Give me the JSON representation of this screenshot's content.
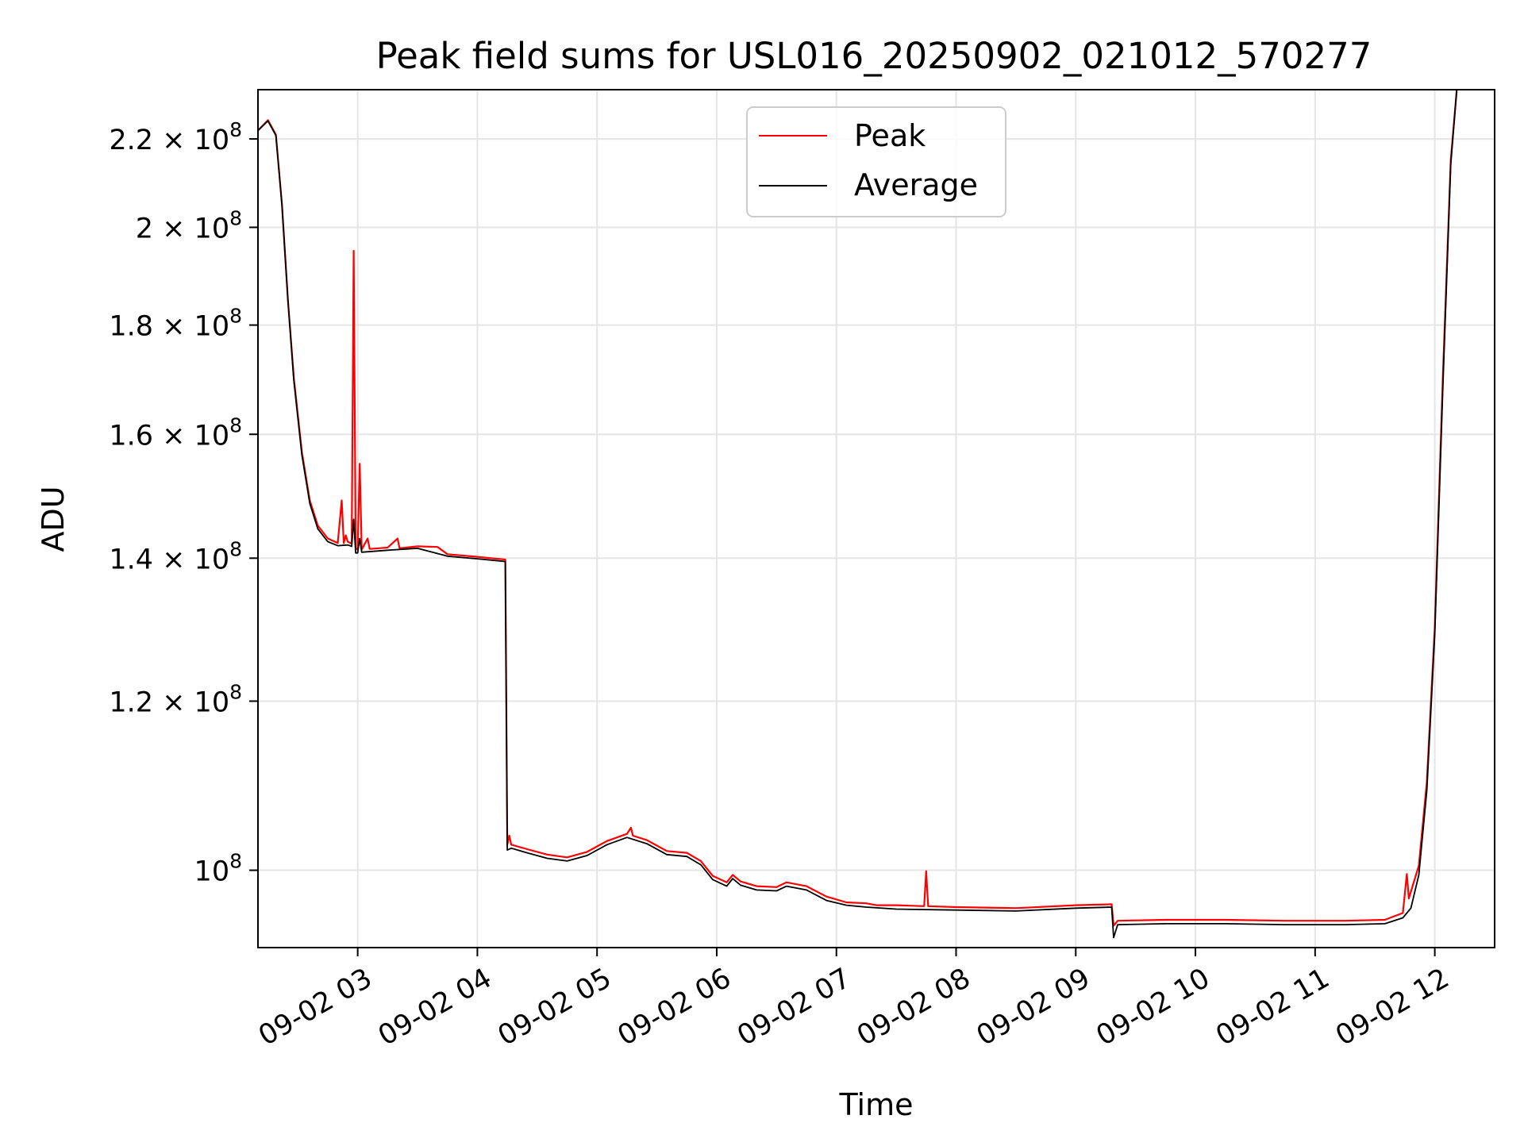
{
  "chart_data": {
    "type": "line",
    "title": "Peak field sums for USL016_20250902_021012_570277",
    "xlabel": "Time",
    "ylabel": "ADU",
    "yscale": "log",
    "grid": true,
    "legend_position": "top-center",
    "xlim": [
      "2025-09-02T02:10",
      "2025-09-02T12:30"
    ],
    "ylim": [
      92000000,
      232000000
    ],
    "x_ticks": [
      {
        "t": "2025-09-02T03:00",
        "label": "09-02 03"
      },
      {
        "t": "2025-09-02T04:00",
        "label": "09-02 04"
      },
      {
        "t": "2025-09-02T05:00",
        "label": "09-02 05"
      },
      {
        "t": "2025-09-02T06:00",
        "label": "09-02 06"
      },
      {
        "t": "2025-09-02T07:00",
        "label": "09-02 07"
      },
      {
        "t": "2025-09-02T08:00",
        "label": "09-02 08"
      },
      {
        "t": "2025-09-02T09:00",
        "label": "09-02 09"
      },
      {
        "t": "2025-09-02T10:00",
        "label": "09-02 10"
      },
      {
        "t": "2025-09-02T11:00",
        "label": "09-02 11"
      },
      {
        "t": "2025-09-02T12:00",
        "label": "09-02 12"
      }
    ],
    "y_ticks": [
      {
        "value": 100000000,
        "mant": "10",
        "exp": "8"
      },
      {
        "value": 120000000,
        "mant": "1.2 × 10",
        "exp": "8"
      },
      {
        "value": 140000000,
        "mant": "1.4 × 10",
        "exp": "8"
      },
      {
        "value": 160000000,
        "mant": "1.6 × 10",
        "exp": "8"
      },
      {
        "value": 180000000,
        "mant": "1.8 × 10",
        "exp": "8"
      },
      {
        "value": 200000000,
        "mant": "2 × 10",
        "exp": "8"
      },
      {
        "value": 220000000,
        "mant": "2.2 × 10",
        "exp": "8"
      }
    ],
    "series": [
      {
        "name": "Peak",
        "color": "#ff0000",
        "points": [
          [
            "2025-09-02T02:10",
            222000000
          ],
          [
            "2025-09-02T02:15",
            224500000
          ],
          [
            "2025-09-02T02:19",
            221000000
          ],
          [
            "2025-09-02T02:22",
            205000000
          ],
          [
            "2025-09-02T02:25",
            185000000
          ],
          [
            "2025-09-02T02:28",
            170000000
          ],
          [
            "2025-09-02T02:32",
            157000000
          ],
          [
            "2025-09-02T02:36",
            149000000
          ],
          [
            "2025-09-02T02:40",
            145000000
          ],
          [
            "2025-09-02T02:45",
            143000000
          ],
          [
            "2025-09-02T02:50",
            142300000
          ],
          [
            "2025-09-02T02:52",
            149000000
          ],
          [
            "2025-09-02T02:53",
            142300000
          ],
          [
            "2025-09-02T02:54",
            143500000
          ],
          [
            "2025-09-02T02:55",
            142500000
          ],
          [
            "2025-09-02T02:57",
            142200000
          ],
          [
            "2025-09-02T02:58",
            195000000
          ],
          [
            "2025-09-02T02:59",
            141500000
          ],
          [
            "2025-09-02T03:00",
            141300000
          ],
          [
            "2025-09-02T03:01",
            155000000
          ],
          [
            "2025-09-02T03:02",
            141300000
          ],
          [
            "2025-09-02T03:05",
            143000000
          ],
          [
            "2025-09-02T03:06",
            141400000
          ],
          [
            "2025-09-02T03:15",
            141600000
          ],
          [
            "2025-09-02T03:20",
            143000000
          ],
          [
            "2025-09-02T03:21",
            141500000
          ],
          [
            "2025-09-02T03:30",
            141800000
          ],
          [
            "2025-09-02T03:40",
            141700000
          ],
          [
            "2025-09-02T03:45",
            140600000
          ],
          [
            "2025-09-02T04:00",
            140200000
          ],
          [
            "2025-09-02T04:10",
            139900000
          ],
          [
            "2025-09-02T04:14",
            139800000
          ],
          [
            "2025-09-02T04:15",
            102800000
          ],
          [
            "2025-09-02T04:16",
            103800000
          ],
          [
            "2025-09-02T04:17",
            102800000
          ],
          [
            "2025-09-02T04:25",
            102300000
          ],
          [
            "2025-09-02T04:35",
            101700000
          ],
          [
            "2025-09-02T04:45",
            101400000
          ],
          [
            "2025-09-02T04:55",
            102000000
          ],
          [
            "2025-09-02T05:05",
            103200000
          ],
          [
            "2025-09-02T05:15",
            104000000
          ],
          [
            "2025-09-02T05:17",
            104700000
          ],
          [
            "2025-09-02T05:18",
            103800000
          ],
          [
            "2025-09-02T05:25",
            103300000
          ],
          [
            "2025-09-02T05:35",
            102100000
          ],
          [
            "2025-09-02T05:45",
            101900000
          ],
          [
            "2025-09-02T05:52",
            101000000
          ],
          [
            "2025-09-02T05:58",
            99400000
          ],
          [
            "2025-09-02T06:05",
            98700000
          ],
          [
            "2025-09-02T06:08",
            99500000
          ],
          [
            "2025-09-02T06:12",
            98800000
          ],
          [
            "2025-09-02T06:20",
            98300000
          ],
          [
            "2025-09-02T06:30",
            98200000
          ],
          [
            "2025-09-02T06:35",
            98700000
          ],
          [
            "2025-09-02T06:45",
            98300000
          ],
          [
            "2025-09-02T06:55",
            97200000
          ],
          [
            "2025-09-02T07:05",
            96600000
          ],
          [
            "2025-09-02T07:15",
            96500000
          ],
          [
            "2025-09-02T07:20",
            96300000
          ],
          [
            "2025-09-02T07:30",
            96300000
          ],
          [
            "2025-09-02T07:44",
            96200000
          ],
          [
            "2025-09-02T07:45",
            99900000
          ],
          [
            "2025-09-02T07:46",
            96200000
          ],
          [
            "2025-09-02T08:00",
            96100000
          ],
          [
            "2025-09-02T08:30",
            96000000
          ],
          [
            "2025-09-02T09:00",
            96300000
          ],
          [
            "2025-09-02T09:18",
            96400000
          ],
          [
            "2025-09-02T09:19",
            94200000
          ],
          [
            "2025-09-02T09:21",
            94700000
          ],
          [
            "2025-09-02T09:45",
            94800000
          ],
          [
            "2025-09-02T10:15",
            94800000
          ],
          [
            "2025-09-02T10:45",
            94700000
          ],
          [
            "2025-09-02T11:15",
            94700000
          ],
          [
            "2025-09-02T11:35",
            94800000
          ],
          [
            "2025-09-02T11:44",
            95500000
          ],
          [
            "2025-09-02T11:46",
            99600000
          ],
          [
            "2025-09-02T11:47",
            97000000
          ],
          [
            "2025-09-02T11:52",
            100500000
          ],
          [
            "2025-09-02T11:56",
            110000000
          ],
          [
            "2025-09-02T12:00",
            130000000
          ],
          [
            "2025-09-02T12:04",
            170000000
          ],
          [
            "2025-09-02T12:08",
            215000000
          ],
          [
            "2025-09-02T12:11",
            232000000
          ]
        ]
      },
      {
        "name": "Average",
        "color": "#000000",
        "points": [
          [
            "2025-09-02T02:10",
            222000000
          ],
          [
            "2025-09-02T02:15",
            224300000
          ],
          [
            "2025-09-02T02:19",
            220800000
          ],
          [
            "2025-09-02T02:22",
            205000000
          ],
          [
            "2025-09-02T02:25",
            185000000
          ],
          [
            "2025-09-02T02:28",
            169500000
          ],
          [
            "2025-09-02T02:32",
            156500000
          ],
          [
            "2025-09-02T02:36",
            148500000
          ],
          [
            "2025-09-02T02:40",
            144500000
          ],
          [
            "2025-09-02T02:45",
            142500000
          ],
          [
            "2025-09-02T02:50",
            141900000
          ],
          [
            "2025-09-02T02:55",
            142000000
          ],
          [
            "2025-09-02T02:57",
            141800000
          ],
          [
            "2025-09-02T02:58",
            146000000
          ],
          [
            "2025-09-02T02:59",
            140800000
          ],
          [
            "2025-09-02T03:00",
            140800000
          ],
          [
            "2025-09-02T03:01",
            143000000
          ],
          [
            "2025-09-02T03:02",
            140900000
          ],
          [
            "2025-09-02T03:15",
            141200000
          ],
          [
            "2025-09-02T03:30",
            141500000
          ],
          [
            "2025-09-02T03:45",
            140300000
          ],
          [
            "2025-09-02T04:00",
            139900000
          ],
          [
            "2025-09-02T04:14",
            139500000
          ],
          [
            "2025-09-02T04:15",
            102200000
          ],
          [
            "2025-09-02T04:17",
            102400000
          ],
          [
            "2025-09-02T04:25",
            101900000
          ],
          [
            "2025-09-02T04:35",
            101300000
          ],
          [
            "2025-09-02T04:45",
            101000000
          ],
          [
            "2025-09-02T04:55",
            101600000
          ],
          [
            "2025-09-02T05:05",
            102800000
          ],
          [
            "2025-09-02T05:15",
            103600000
          ],
          [
            "2025-09-02T05:25",
            102900000
          ],
          [
            "2025-09-02T05:35",
            101700000
          ],
          [
            "2025-09-02T05:45",
            101500000
          ],
          [
            "2025-09-02T05:52",
            100600000
          ],
          [
            "2025-09-02T05:58",
            99000000
          ],
          [
            "2025-09-02T06:05",
            98300000
          ],
          [
            "2025-09-02T06:08",
            99100000
          ],
          [
            "2025-09-02T06:12",
            98400000
          ],
          [
            "2025-09-02T06:20",
            97900000
          ],
          [
            "2025-09-02T06:30",
            97800000
          ],
          [
            "2025-09-02T06:35",
            98300000
          ],
          [
            "2025-09-02T06:45",
            97900000
          ],
          [
            "2025-09-02T06:55",
            96800000
          ],
          [
            "2025-09-02T07:05",
            96300000
          ],
          [
            "2025-09-02T07:15",
            96100000
          ],
          [
            "2025-09-02T07:30",
            95900000
          ],
          [
            "2025-09-02T08:00",
            95800000
          ],
          [
            "2025-09-02T08:30",
            95700000
          ],
          [
            "2025-09-02T09:00",
            96000000
          ],
          [
            "2025-09-02T09:18",
            96100000
          ],
          [
            "2025-09-02T09:19",
            93000000
          ],
          [
            "2025-09-02T09:21",
            94300000
          ],
          [
            "2025-09-02T09:45",
            94400000
          ],
          [
            "2025-09-02T10:15",
            94400000
          ],
          [
            "2025-09-02T10:45",
            94300000
          ],
          [
            "2025-09-02T11:15",
            94300000
          ],
          [
            "2025-09-02T11:35",
            94400000
          ],
          [
            "2025-09-02T11:44",
            95000000
          ],
          [
            "2025-09-02T11:48",
            96000000
          ],
          [
            "2025-09-02T11:52",
            99500000
          ],
          [
            "2025-09-02T11:56",
            109000000
          ],
          [
            "2025-09-02T12:00",
            129000000
          ],
          [
            "2025-09-02T12:04",
            168000000
          ],
          [
            "2025-09-02T12:08",
            214000000
          ],
          [
            "2025-09-02T12:11",
            232000000
          ]
        ]
      }
    ]
  }
}
